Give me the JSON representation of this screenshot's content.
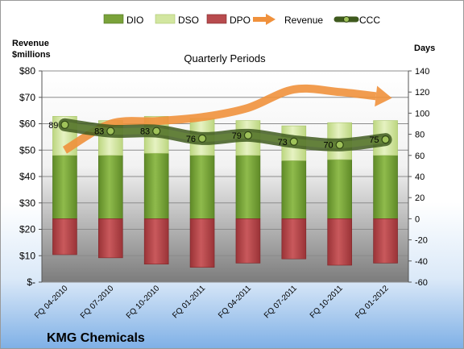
{
  "chart_data": {
    "type": "bar",
    "title": "Quarterly Periods",
    "company": "KMG Chemicals",
    "left_axis_label": [
      "Revenue",
      "$millions"
    ],
    "right_axis_label": "Days",
    "categories": [
      "FQ 04-2010",
      "FQ 07-2010",
      "FQ 10-2010",
      "FQ 01-2011",
      "FQ 04-2011",
      "FQ 07-2011",
      "FQ 10-2011",
      "FQ 01-2012"
    ],
    "left_axis": {
      "min": 0,
      "max": 80,
      "step": 10,
      "tick_labels": [
        "$-",
        "$10",
        "$20",
        "$30",
        "$40",
        "$50",
        "$60",
        "$70",
        "$80"
      ]
    },
    "right_axis": {
      "min": -60,
      "max": 140,
      "step": 20
    },
    "series": [
      {
        "name": "DIO",
        "axis": "right",
        "kind": "stacked-bar",
        "color": "#7aa23a",
        "values": [
          60,
          60,
          62,
          60,
          60,
          55,
          56,
          60
        ]
      },
      {
        "name": "DSO",
        "axis": "right",
        "kind": "stacked-bar",
        "color": "#d2e6a0",
        "values": [
          37,
          33,
          35,
          35,
          33,
          33,
          35,
          33
        ]
      },
      {
        "name": "DPO",
        "axis": "right",
        "kind": "negative-bar",
        "color": "#b84b4e",
        "values": [
          -34,
          -37,
          -43,
          -46,
          -42,
          -38,
          -44,
          -42
        ]
      },
      {
        "name": "Revenue",
        "axis": "left",
        "kind": "arrow-line",
        "color": "#f0913c",
        "values": [
          50,
          60,
          61,
          62.5,
          66,
          73,
          72,
          70
        ]
      },
      {
        "name": "CCC",
        "axis": "right",
        "kind": "line",
        "color": "#5c7a2e",
        "values": [
          89,
          83,
          83,
          76,
          79,
          73,
          70,
          75
        ],
        "labels": [
          "89",
          "83",
          "83",
          "76",
          "79",
          "73",
          "70",
          "75"
        ]
      }
    ],
    "legend_position": "top"
  }
}
